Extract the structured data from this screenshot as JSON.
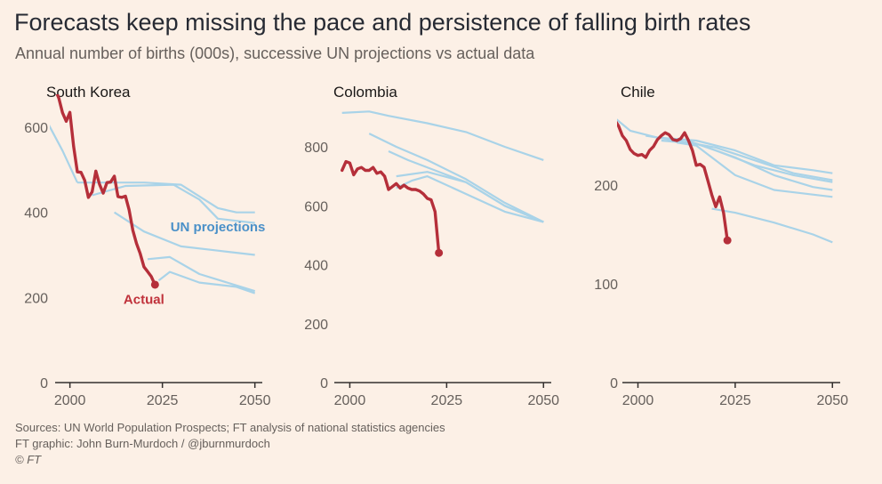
{
  "header": {
    "title": "Forecasts keep missing the pace and persistence of falling birth rates",
    "subtitle": "Annual number of births (000s), successive UN projections vs actual data"
  },
  "footer": {
    "sources": "Sources: UN World Population Prospects; FT analysis of national statistics agencies",
    "credit": "FT graphic: John Burn-Murdoch / @jburnmurdoch",
    "copyright": "© FT"
  },
  "colors": {
    "actual": "#b52f3a",
    "projection": "#a9d3e8",
    "axis": "#33302e",
    "background": "#fcf0e6"
  },
  "chart_data": [
    {
      "type": "line",
      "title": "South Korea",
      "xlabel": "",
      "ylabel": "Births (000s)",
      "xlim": [
        1996,
        2052
      ],
      "ylim": [
        0,
        620
      ],
      "xticks": [
        2000,
        2025,
        2050
      ],
      "yticks": [
        0,
        200,
        400,
        600
      ],
      "annotations": [
        {
          "text": "UN projections",
          "x": 2040,
          "y": 355,
          "series": "projection"
        },
        {
          "text": "Actual",
          "x": 2020,
          "y": 185,
          "series": "actual"
        }
      ],
      "actual": {
        "name": "Actual",
        "x": [
          1995,
          1996,
          1997,
          1998,
          1999,
          2000,
          2001,
          2002,
          2003,
          2004,
          2005,
          2006,
          2007,
          2008,
          2009,
          2010,
          2011,
          2012,
          2013,
          2014,
          2015,
          2016,
          2017,
          2018,
          2019,
          2020,
          2021,
          2022,
          2023
        ],
        "y": [
          715,
          690,
          668,
          634,
          614,
          635,
          555,
          495,
          494,
          475,
          435,
          448,
          497,
          466,
          445,
          470,
          471,
          485,
          437,
          435,
          438,
          406,
          358,
          327,
          303,
          272,
          261,
          249,
          230
        ]
      },
      "projections": [
        {
          "name": "Projection 1",
          "x": [
            1994,
            1998,
            2002
          ],
          "y": [
            610,
            545,
            470
          ]
        },
        {
          "name": "Projection 2",
          "x": [
            2002,
            2010,
            2020,
            2030,
            2040,
            2045,
            2050
          ],
          "y": [
            470,
            470,
            470,
            465,
            410,
            400,
            400
          ]
        },
        {
          "name": "Projection 3",
          "x": [
            2006,
            2015,
            2028,
            2035,
            2040,
            2050
          ],
          "y": [
            440,
            462,
            465,
            430,
            385,
            375
          ]
        },
        {
          "name": "Projection 4",
          "x": [
            2012,
            2020,
            2030,
            2040,
            2050
          ],
          "y": [
            400,
            355,
            320,
            310,
            300
          ]
        },
        {
          "name": "Projection 5",
          "x": [
            2021,
            2027,
            2035,
            2050
          ],
          "y": [
            290,
            295,
            255,
            215
          ]
        },
        {
          "name": "Projection 6",
          "x": [
            2024,
            2027,
            2035,
            2045,
            2050
          ],
          "y": [
            240,
            260,
            235,
            225,
            210
          ]
        }
      ]
    },
    {
      "type": "line",
      "title": "Colombia",
      "xlabel": "",
      "ylabel": "Births (000s)",
      "xlim": [
        1996,
        2052
      ],
      "ylim": [
        0,
        950
      ],
      "xticks": [
        2000,
        2025,
        2050
      ],
      "yticks": [
        0,
        200,
        400,
        600,
        800
      ],
      "actual": {
        "name": "Actual",
        "x": [
          1998,
          1999,
          2000,
          2001,
          2002,
          2003,
          2004,
          2005,
          2006,
          2007,
          2008,
          2009,
          2010,
          2011,
          2012,
          2013,
          2014,
          2015,
          2016,
          2017,
          2018,
          2019,
          2020,
          2021,
          2022,
          2023
        ],
        "y": [
          720,
          750,
          745,
          705,
          725,
          730,
          720,
          720,
          730,
          710,
          715,
          700,
          655,
          665,
          675,
          660,
          670,
          660,
          655,
          655,
          650,
          640,
          625,
          620,
          580,
          440
        ]
      },
      "projections": [
        {
          "name": "Projection 1",
          "x": [
            1998,
            2005,
            2010,
            2020,
            2030,
            2040,
            2050
          ],
          "y": [
            915,
            920,
            905,
            880,
            850,
            800,
            755
          ]
        },
        {
          "name": "Projection 2",
          "x": [
            2005,
            2012,
            2020,
            2030,
            2040,
            2050
          ],
          "y": [
            845,
            800,
            755,
            690,
            610,
            545
          ]
        },
        {
          "name": "Projection 3",
          "x": [
            2010,
            2015,
            2022,
            2030,
            2040,
            2050
          ],
          "y": [
            785,
            755,
            720,
            680,
            600,
            545
          ]
        },
        {
          "name": "Projection 4",
          "x": [
            2012,
            2020,
            2030,
            2040,
            2050
          ],
          "y": [
            700,
            715,
            680,
            600,
            545
          ]
        },
        {
          "name": "Projection 5",
          "x": [
            2012,
            2016,
            2020,
            2030,
            2040,
            2050
          ],
          "y": [
            660,
            685,
            700,
            640,
            580,
            545
          ]
        }
      ]
    },
    {
      "type": "line",
      "title": "Chile",
      "xlabel": "",
      "ylabel": "Births (000s)",
      "xlim": [
        1996,
        2052
      ],
      "ylim": [
        0,
        290
      ],
      "xticks": [
        2000,
        2025,
        2050
      ],
      "yticks": [
        0,
        100,
        200
      ],
      "actual": {
        "name": "Actual",
        "x": [
          1991,
          1992,
          1993,
          1994,
          1995,
          1996,
          1997,
          1998,
          1999,
          2000,
          2001,
          2002,
          2003,
          2004,
          2005,
          2006,
          2007,
          2008,
          2009,
          2010,
          2011,
          2012,
          2013,
          2014,
          2015,
          2016,
          2017,
          2018,
          2019,
          2020,
          2021,
          2022,
          2023
        ],
        "y": [
          283,
          278,
          275,
          266,
          260,
          250,
          245,
          236,
          232,
          230,
          231,
          228,
          235,
          239,
          246,
          250,
          253,
          251,
          246,
          245,
          247,
          253,
          245,
          235,
          220,
          221,
          218,
          204,
          190,
          178,
          188,
          172,
          144
        ]
      },
      "projections": [
        {
          "name": "Projection 1",
          "x": [
            1994,
            1998,
            2005,
            2015,
            2025,
            2035,
            2045,
            2050
          ],
          "y": [
            268,
            255,
            248,
            245,
            235,
            220,
            215,
            212
          ]
        },
        {
          "name": "Projection 2",
          "x": [
            2002,
            2010,
            2020,
            2030,
            2040,
            2050
          ],
          "y": [
            250,
            245,
            238,
            225,
            212,
            205
          ]
        },
        {
          "name": "Projection 3",
          "x": [
            2005,
            2012,
            2020,
            2030,
            2040,
            2050
          ],
          "y": [
            248,
            246,
            235,
            220,
            210,
            203
          ]
        },
        {
          "name": "Projection 4",
          "x": [
            2006,
            2015,
            2025,
            2035,
            2045,
            2050
          ],
          "y": [
            245,
            242,
            228,
            210,
            198,
            195
          ]
        },
        {
          "name": "Projection 5",
          "x": [
            2010,
            2015,
            2025,
            2035,
            2050
          ],
          "y": [
            243,
            240,
            210,
            195,
            188
          ]
        },
        {
          "name": "Projection 6",
          "x": [
            2019,
            2025,
            2035,
            2045,
            2050
          ],
          "y": [
            176,
            172,
            162,
            150,
            142
          ]
        }
      ]
    }
  ]
}
